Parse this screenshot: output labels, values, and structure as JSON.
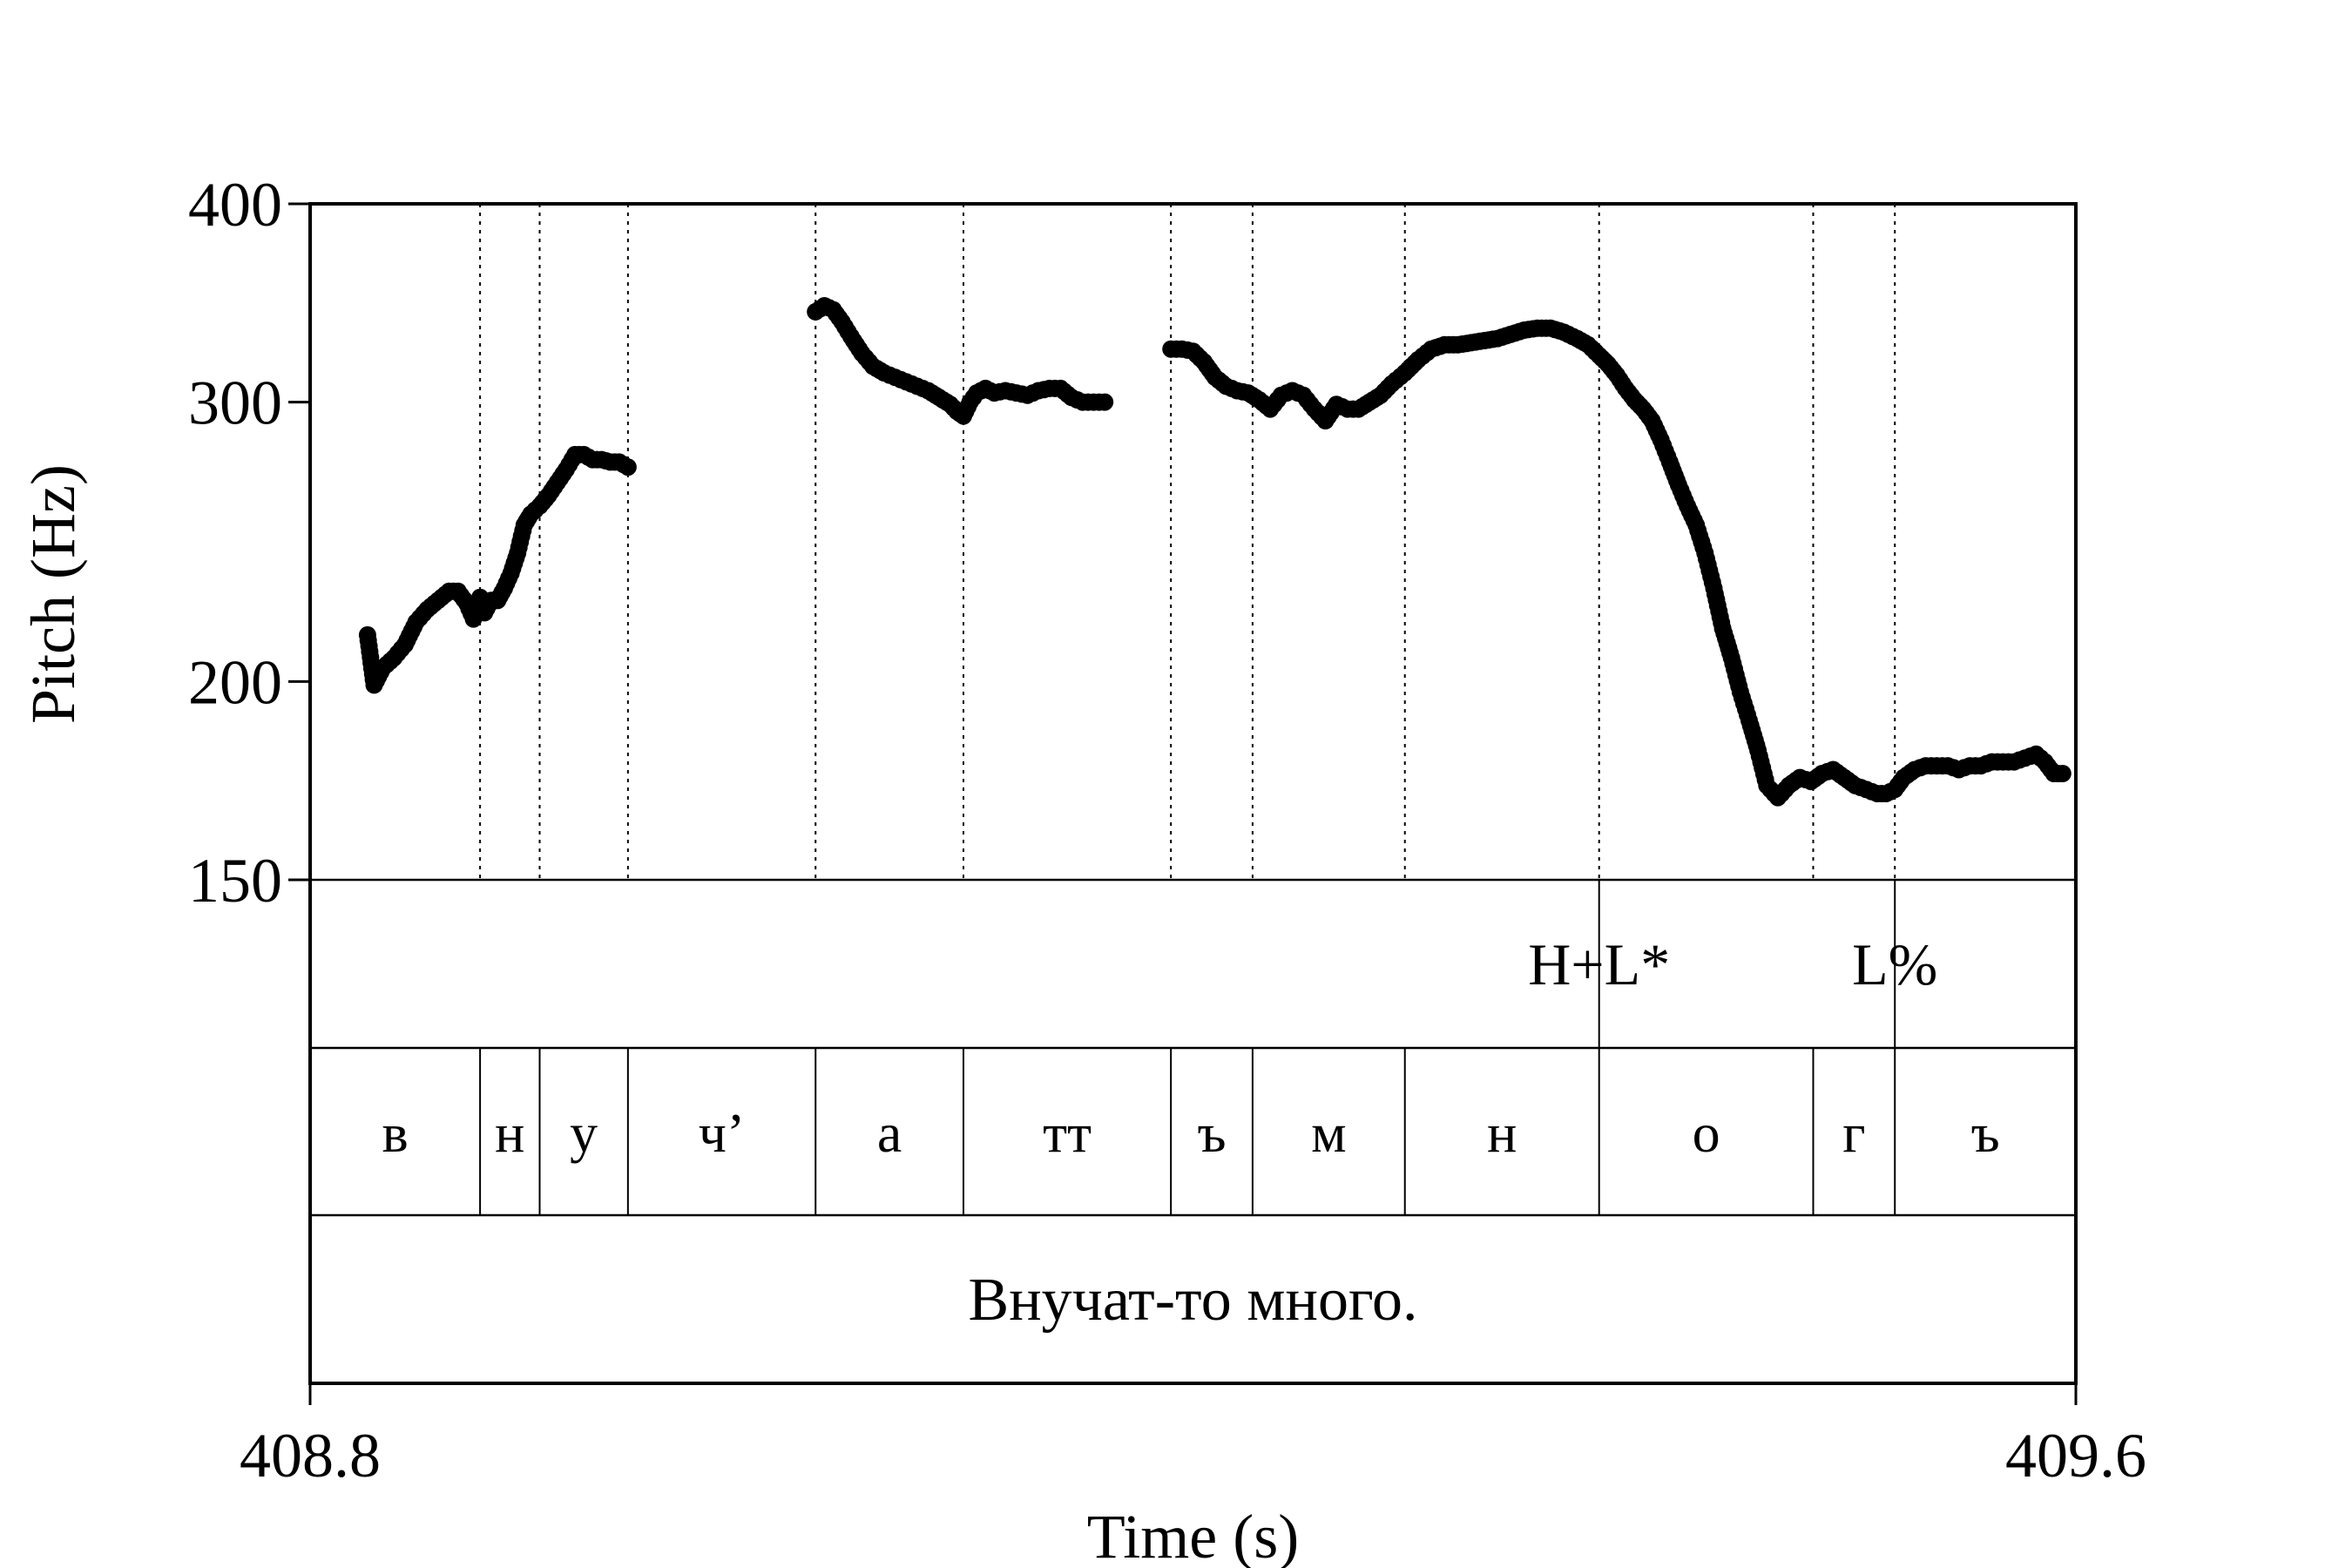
{
  "chart_data": {
    "type": "scatter",
    "title": "",
    "xlabel": "Time (s)",
    "ylabel": "Pitch (Hz)",
    "xlim": [
      408.8,
      409.6
    ],
    "ylim": [
      150,
      400
    ],
    "y_scale": "log",
    "x_tick_labels": [
      "408.8",
      "409.6"
    ],
    "y_ticks": [
      150,
      200,
      300,
      400
    ],
    "y_tick_labels": [
      "150",
      "200",
      "300",
      "400"
    ],
    "grid": false,
    "legend": "none",
    "color": "#000000",
    "segments": [
      {
        "label": "в",
        "start": 408.8,
        "end": 408.877
      },
      {
        "label": "н",
        "start": 408.877,
        "end": 408.904
      },
      {
        "label": "у",
        "start": 408.904,
        "end": 408.944
      },
      {
        "label": "ч’",
        "start": 408.944,
        "end": 409.029
      },
      {
        "label": "а",
        "start": 409.029,
        "end": 409.096
      },
      {
        "label": "тт",
        "start": 409.096,
        "end": 409.19
      },
      {
        "label": "ъ",
        "start": 409.19,
        "end": 409.227
      },
      {
        "label": "м",
        "start": 409.227,
        "end": 409.296
      },
      {
        "label": "н",
        "start": 409.296,
        "end": 409.384
      },
      {
        "label": "о",
        "start": 409.384,
        "end": 409.481
      },
      {
        "label": "г",
        "start": 409.481,
        "end": 409.518
      },
      {
        "label": "ъ",
        "start": 409.518,
        "end": 409.6
      }
    ],
    "tones": [
      {
        "label": "H+L*",
        "time": 409.384
      },
      {
        "label": "L%",
        "time": 409.518
      }
    ],
    "sentence": "Внучат-то много.",
    "pitch_track": [
      {
        "x": [
          408.826,
          408.829,
          408.833,
          408.838,
          408.843,
          408.848,
          408.853,
          408.858,
          408.863,
          408.867,
          408.871,
          408.874,
          408.877,
          408.879,
          408.882,
          408.885,
          408.888,
          408.891,
          408.894,
          408.897,
          408.9,
          408.904,
          408.908,
          408.912,
          408.916,
          408.92,
          408.924,
          408.928,
          408.932,
          408.936,
          408.94,
          408.944
        ],
        "y": [
          214,
          199,
          204,
          207,
          211,
          218,
          222,
          225,
          228,
          228,
          224,
          219,
          226,
          221,
          225,
          225,
          229,
          234,
          241,
          251,
          255,
          258,
          262,
          267,
          272,
          278,
          278,
          276,
          276,
          275,
          275,
          273
        ]
      },
      {
        "x": [
          409.029,
          409.033,
          409.037,
          409.041,
          409.045,
          409.05,
          409.055,
          409.06,
          409.065,
          409.07,
          409.075,
          409.08,
          409.085,
          409.09,
          409.093,
          409.096,
          409.099,
          409.102,
          409.106,
          409.11,
          409.115,
          409.12,
          409.125,
          409.13,
          409.135,
          409.14,
          409.145,
          409.15,
          409.155,
          409.16
        ],
        "y": [
          342,
          345,
          343,
          337,
          330,
          322,
          316,
          313,
          311,
          309,
          307,
          305,
          302,
          299,
          296,
          294,
          300,
          304,
          306,
          304,
          305,
          304,
          303,
          305,
          306,
          306,
          302,
          300,
          300,
          300
        ]
      },
      {
        "x": [
          409.19,
          409.195,
          409.2,
          409.205,
          409.21,
          409.215,
          409.22,
          409.225,
          409.23,
          409.235,
          409.24,
          409.245,
          409.25,
          409.255,
          409.26,
          409.265,
          409.27,
          409.275,
          409.28,
          409.285,
          409.29,
          409.296,
          409.302,
          409.308,
          409.314,
          409.32,
          409.326,
          409.332,
          409.338,
          409.344,
          409.35,
          409.356,
          409.362,
          409.368,
          409.374,
          409.379,
          409.384,
          409.388,
          409.392,
          409.396,
          409.4,
          409.404,
          409.408,
          409.412,
          409.416,
          409.42,
          409.424,
          409.428,
          409.432,
          409.436,
          409.44,
          409.444,
          409.448,
          409.452,
          409.456,
          409.46,
          409.465,
          409.47,
          409.475,
          409.48,
          409.485,
          409.49,
          409.495,
          409.5,
          409.505,
          409.51,
          409.514,
          409.518,
          409.522,
          409.527,
          409.532,
          409.537,
          409.542,
          409.547,
          409.552,
          409.557,
          409.562,
          409.567,
          409.572,
          409.577,
          409.582,
          409.586,
          409.59,
          409.594
        ],
        "y": [
          324,
          324,
          323,
          318,
          311,
          307,
          305,
          304,
          301,
          297,
          303,
          305,
          303,
          297,
          292,
          299,
          297,
          297,
          300,
          303,
          308,
          313,
          319,
          324,
          326,
          326,
          327,
          328,
          329,
          331,
          333,
          334,
          334,
          332,
          329,
          326,
          321,
          317,
          312,
          306,
          301,
          297,
          292,
          284,
          275,
          266,
          258,
          251,
          241,
          229,
          216,
          207,
          197,
          189,
          181,
          172,
          169,
          172,
          174,
          173,
          175,
          176,
          174,
          172,
          171,
          170,
          170,
          171,
          174,
          176,
          177,
          177,
          177,
          176,
          177,
          177,
          178,
          178,
          178,
          179,
          180,
          178,
          175,
          175
        ]
      }
    ]
  }
}
